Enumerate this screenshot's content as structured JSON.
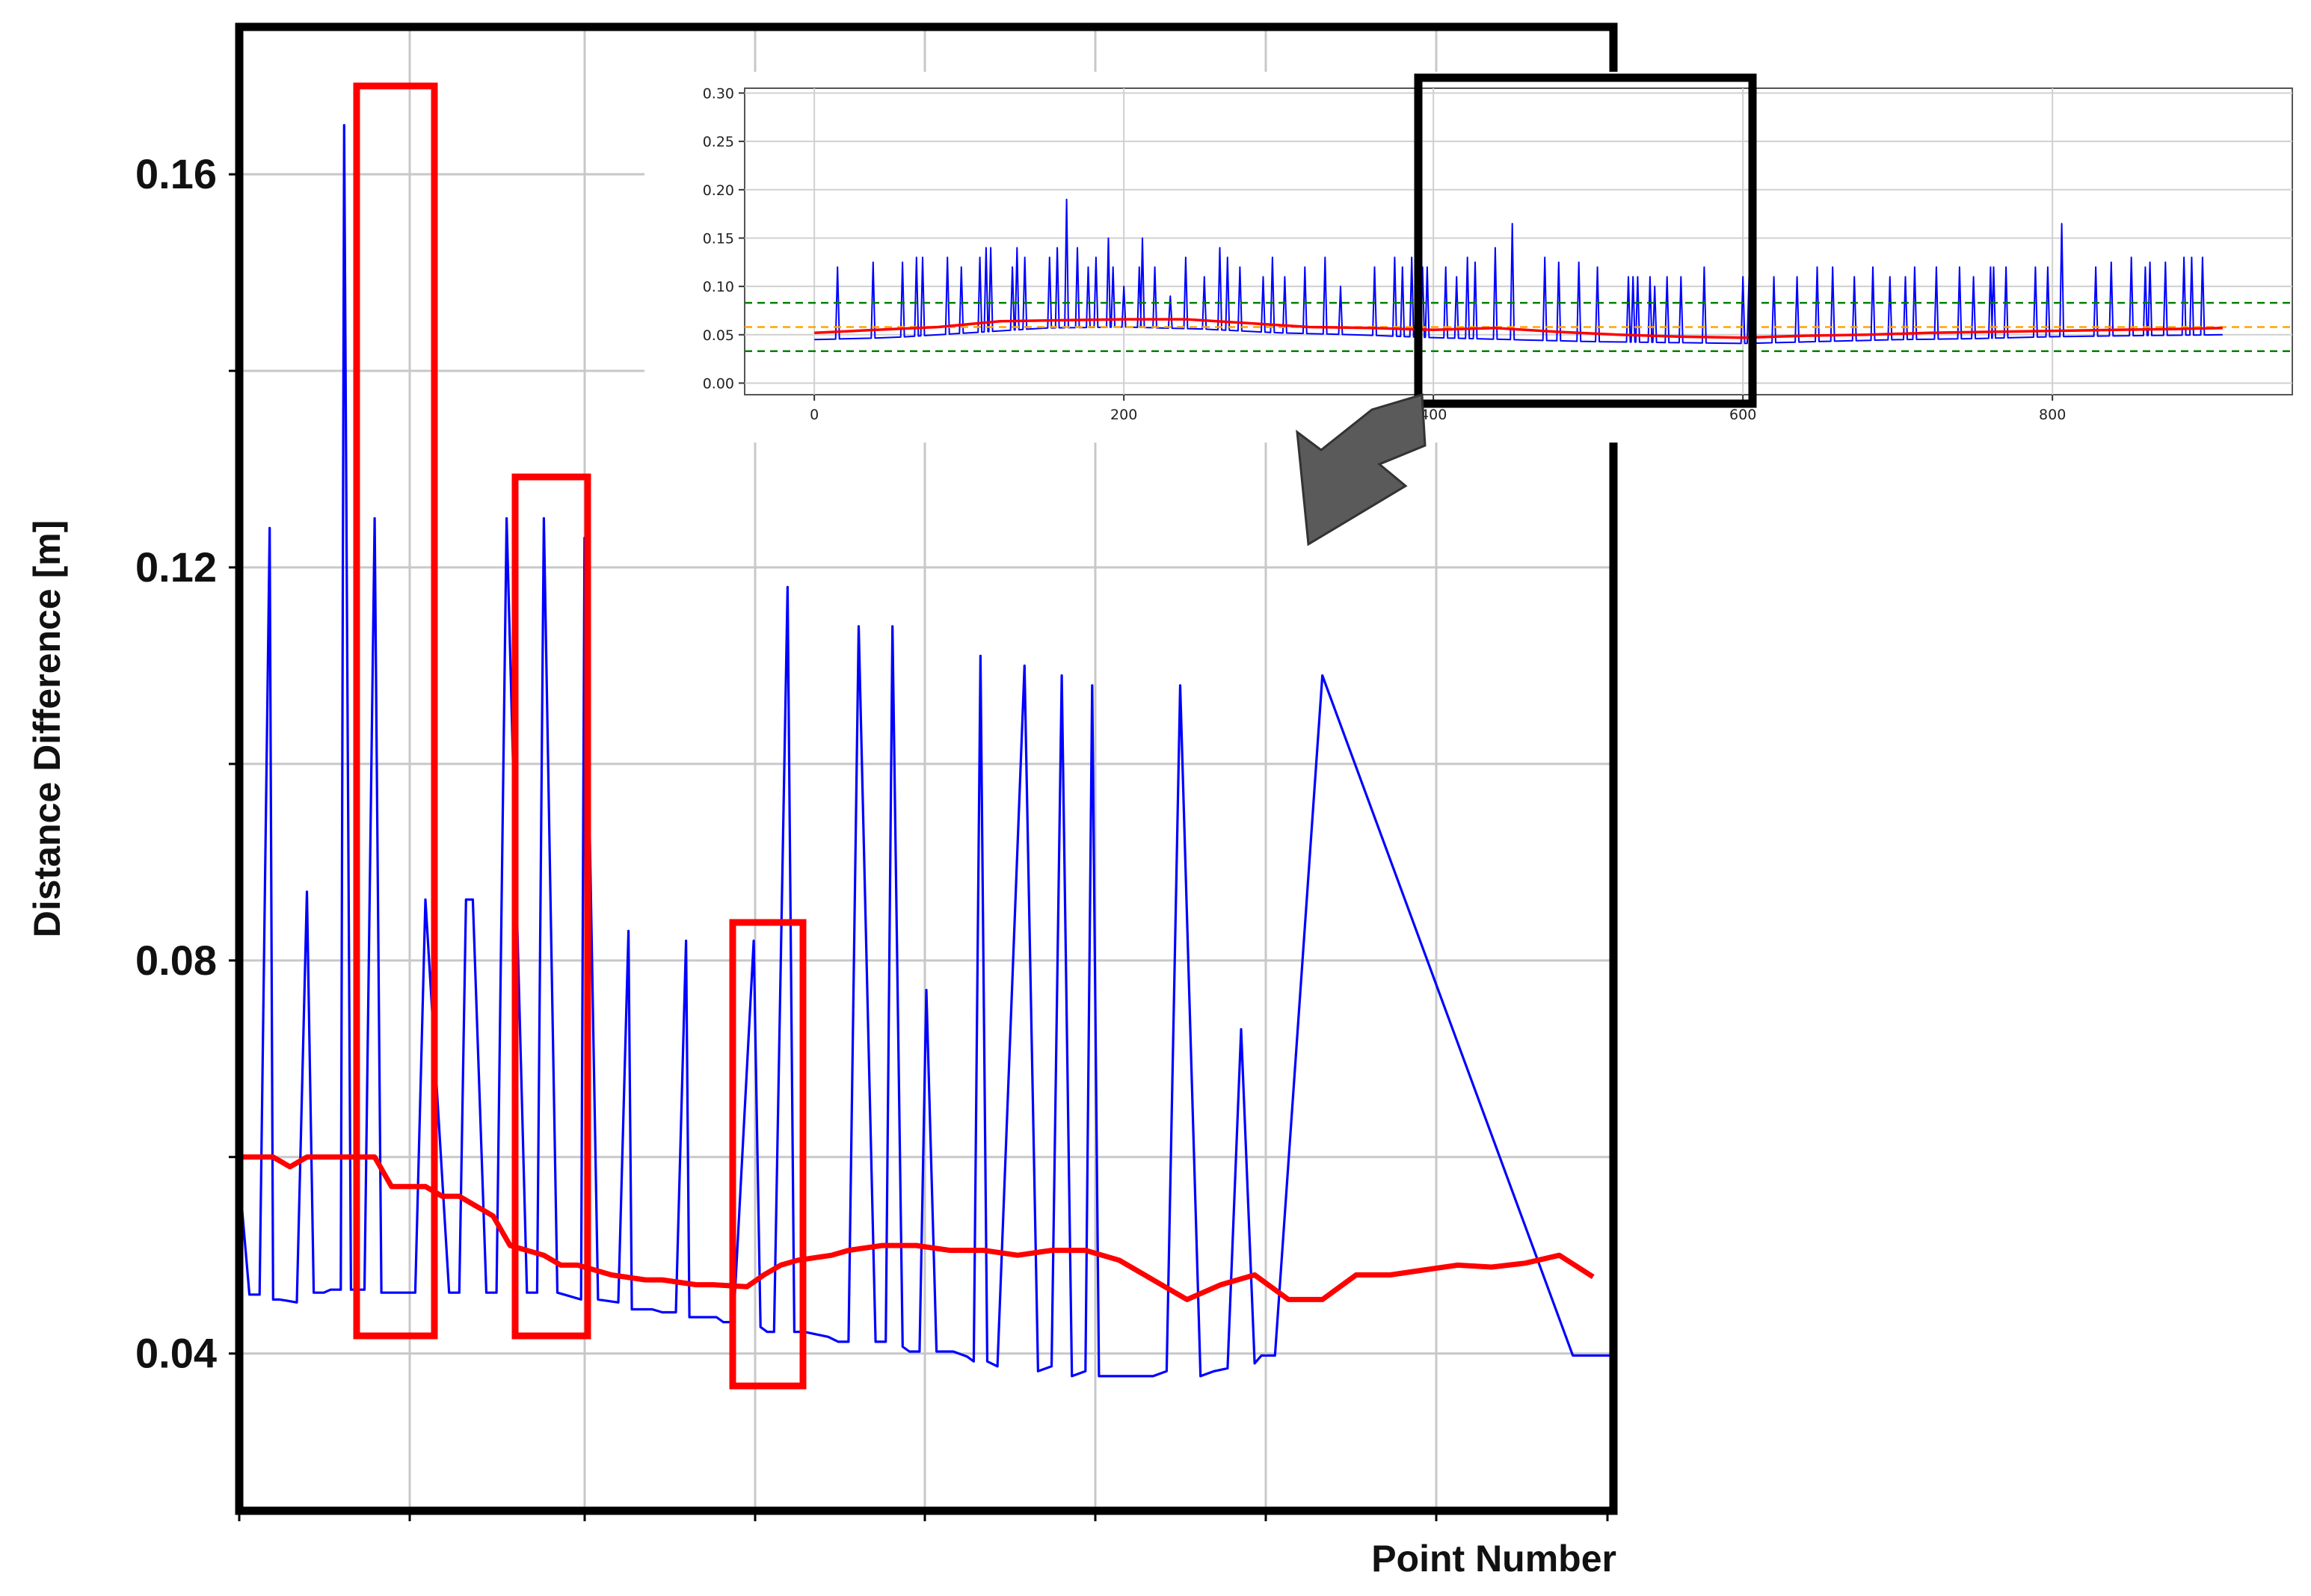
{
  "chart_data": [
    {
      "name": "zoomed-view",
      "type": "line",
      "title": "",
      "xlabel": "Point Number",
      "ylabel": "Distance Difference [m]",
      "ylim": [
        0.024,
        0.175
      ],
      "y_ticks": [
        "0.04",
        "0.08",
        "0.12",
        "0.16"
      ],
      "y_tick_values": [
        0.04,
        0.08,
        0.12,
        0.16
      ],
      "x_ticks": [],
      "grid": true,
      "legend": "none",
      "series": [
        {
          "color": "#0000ff",
          "x": [
            0,
            3,
            6,
            9,
            10,
            12,
            17,
            20,
            22,
            25,
            27,
            30,
            31,
            33,
            37,
            40,
            42,
            45,
            47,
            50,
            52,
            55,
            62,
            65,
            67,
            69,
            73,
            75,
            76,
            79,
            85,
            88,
            90,
            94,
            98,
            101,
            102,
            106,
            112,
            115,
            116,
            120,
            122,
            125,
            129,
            132,
            133,
            137,
            141,
            143,
            146,
            152,
            154,
            156,
            158,
            162,
            164,
            167,
            174,
            177,
            180,
            183,
            188,
            191,
            193,
            196,
            198,
            201,
            203,
            206,
            208,
            211,
            215,
            217,
            219,
            221,
            224,
            232,
            236,
            240,
            243,
            246,
            250,
            252,
            254,
            270,
            274,
            278,
            284,
            288,
            292,
            296,
            300,
            302,
            306,
            320,
            394,
            396,
            398,
            400,
            402,
            404,
            406
          ],
          "y": [
            0.058,
            0.046,
            0.046,
            0.124,
            0.0455,
            0.0455,
            0.0452,
            0.087,
            0.0462,
            0.0462,
            0.0465,
            0.0465,
            0.165,
            0.0465,
            0.0465,
            0.125,
            0.0462,
            0.0462,
            0.0462,
            0.0462,
            0.0462,
            0.0862,
            0.0462,
            0.0462,
            0.0862,
            0.0862,
            0.0462,
            0.0462,
            0.0462,
            0.125,
            0.0462,
            0.0462,
            0.125,
            0.0462,
            0.0458,
            0.0455,
            0.123,
            0.0455,
            0.0452,
            0.083,
            0.0445,
            0.0445,
            0.0445,
            0.0442,
            0.0442,
            0.082,
            0.0437,
            0.0437,
            0.0437,
            0.0432,
            0.0432,
            0.082,
            0.0427,
            0.0422,
            0.0422,
            0.118,
            0.0422,
            0.0422,
            0.0417,
            0.0412,
            0.0412,
            0.114,
            0.0412,
            0.0412,
            0.114,
            0.0407,
            0.0402,
            0.0402,
            0.077,
            0.0402,
            0.0402,
            0.0402,
            0.0397,
            0.0392,
            0.111,
            0.0392,
            0.0387,
            0.11,
            0.0382,
            0.0387,
            0.109,
            0.0377,
            0.0382,
            0.108,
            0.0377,
            0.0377,
            0.0382,
            0.108,
            0.0377,
            0.0382,
            0.0385,
            0.073,
            0.039,
            0.0398,
            0.0398,
            0.109,
            0.0398,
            0.0398,
            0.0398,
            0.0398,
            0.0398,
            0.0398,
            0.0398
          ]
        },
        {
          "color": "#ff0000",
          "x": [
            0,
            10,
            15,
            20,
            30,
            40,
            45,
            55,
            60,
            65,
            75,
            80,
            90,
            95,
            100,
            110,
            120,
            125,
            135,
            140,
            150,
            155,
            160,
            165,
            175,
            180,
            190,
            200,
            210,
            220,
            230,
            240,
            250,
            260,
            270,
            280,
            290,
            300,
            310,
            320,
            330,
            340,
            350,
            360,
            370,
            380,
            390,
            400
          ],
          "y": [
            0.06,
            0.06,
            0.059,
            0.06,
            0.06,
            0.06,
            0.057,
            0.057,
            0.056,
            0.056,
            0.054,
            0.051,
            0.05,
            0.049,
            0.049,
            0.048,
            0.0475,
            0.0475,
            0.047,
            0.047,
            0.0468,
            0.048,
            0.049,
            0.0495,
            0.05,
            0.0505,
            0.051,
            0.051,
            0.0505,
            0.0505,
            0.05,
            0.0505,
            0.0505,
            0.0495,
            0.0475,
            0.0455,
            0.047,
            0.048,
            0.0455,
            0.0455,
            0.048,
            0.048,
            0.0485,
            0.049,
            0.0488,
            0.0492,
            0.05,
            0.0478
          ]
        }
      ]
    },
    {
      "name": "full-view",
      "type": "line",
      "title": "",
      "xlabel": "",
      "ylabel": "",
      "xlim": [
        -45,
        955
      ],
      "ylim": [
        -0.012,
        0.305
      ],
      "x_ticks": [
        "0",
        "200",
        "400",
        "600",
        "800"
      ],
      "x_tick_values": [
        0,
        200,
        400,
        600,
        800
      ],
      "y_ticks": [
        "0.00",
        "0.05",
        "0.10",
        "0.15",
        "0.20",
        "0.25",
        "0.30"
      ],
      "y_tick_values": [
        0.0,
        0.05,
        0.1,
        0.15,
        0.2,
        0.25,
        0.3
      ],
      "grid": true,
      "legend": "none",
      "baseline": {
        "color": "#0000ff",
        "x": [
          0,
          50,
          100,
          150,
          200,
          250,
          300,
          350,
          400,
          450,
          500,
          550,
          600,
          650,
          700,
          750,
          800,
          850,
          910
        ],
        "y": [
          0.045,
          0.047,
          0.052,
          0.057,
          0.058,
          0.056,
          0.052,
          0.05,
          0.047,
          0.045,
          0.043,
          0.042,
          0.041,
          0.043,
          0.045,
          0.046,
          0.048,
          0.049,
          0.05
        ]
      },
      "spikes": {
        "color": "#0000ff",
        "x": [
          15,
          38,
          57,
          66,
          70,
          86,
          95,
          107,
          111,
          114,
          128,
          131,
          136,
          152,
          157,
          163,
          170,
          177,
          182,
          190,
          193,
          200,
          210,
          212,
          220,
          230,
          240,
          252,
          262,
          267,
          275,
          290,
          296,
          304,
          317,
          330,
          340,
          362,
          375,
          380,
          386,
          393,
          396,
          408,
          415,
          422,
          427,
          440,
          451,
          472,
          481,
          494,
          506,
          526,
          529,
          532,
          540,
          543,
          551,
          560,
          575,
          600,
          604,
          620,
          635,
          648,
          658,
          672,
          684,
          695,
          705,
          711,
          725,
          740,
          749,
          760,
          762,
          770,
          789,
          797,
          806,
          828,
          838,
          851,
          860,
          863,
          873,
          885,
          890,
          897
        ],
        "y": [
          0.12,
          0.125,
          0.125,
          0.13,
          0.13,
          0.13,
          0.12,
          0.13,
          0.14,
          0.14,
          0.12,
          0.14,
          0.13,
          0.13,
          0.14,
          0.19,
          0.14,
          0.12,
          0.13,
          0.15,
          0.12,
          0.1,
          0.12,
          0.15,
          0.12,
          0.09,
          0.13,
          0.11,
          0.14,
          0.13,
          0.12,
          0.11,
          0.13,
          0.11,
          0.12,
          0.13,
          0.1,
          0.12,
          0.13,
          0.12,
          0.13,
          0.12,
          0.12,
          0.12,
          0.11,
          0.13,
          0.125,
          0.14,
          0.165,
          0.13,
          0.125,
          0.125,
          0.12,
          0.11,
          0.11,
          0.11,
          0.11,
          0.1,
          0.11,
          0.11,
          0.12,
          0.11,
          0.11,
          0.11,
          0.11,
          0.12,
          0.12,
          0.11,
          0.12,
          0.11,
          0.11,
          0.12,
          0.12,
          0.12,
          0.11,
          0.12,
          0.12,
          0.12,
          0.12,
          0.12,
          0.165,
          0.12,
          0.125,
          0.13,
          0.12,
          0.125,
          0.125,
          0.13,
          0.13,
          0.13
        ]
      },
      "mean_line": {
        "color": "#ff0000",
        "x": [
          0,
          40,
          80,
          120,
          160,
          200,
          240,
          280,
          320,
          360,
          400,
          440,
          480,
          520,
          560,
          600,
          640,
          680,
          720,
          760,
          800,
          840,
          880,
          910
        ],
        "y": [
          0.052,
          0.055,
          0.058,
          0.064,
          0.065,
          0.066,
          0.066,
          0.062,
          0.058,
          0.057,
          0.055,
          0.057,
          0.053,
          0.05,
          0.048,
          0.047,
          0.049,
          0.05,
          0.052,
          0.053,
          0.054,
          0.055,
          0.056,
          0.057
        ]
      },
      "reference_lines": [
        {
          "color": "#008000",
          "y": 0.083
        },
        {
          "color": "#ffa500",
          "y": 0.058
        },
        {
          "color": "#008000",
          "y": 0.033
        }
      ]
    }
  ],
  "annotations": {
    "highlight_color": "#ff0000",
    "zoom_box_color": "#000000",
    "arrow_color": "#555555"
  }
}
